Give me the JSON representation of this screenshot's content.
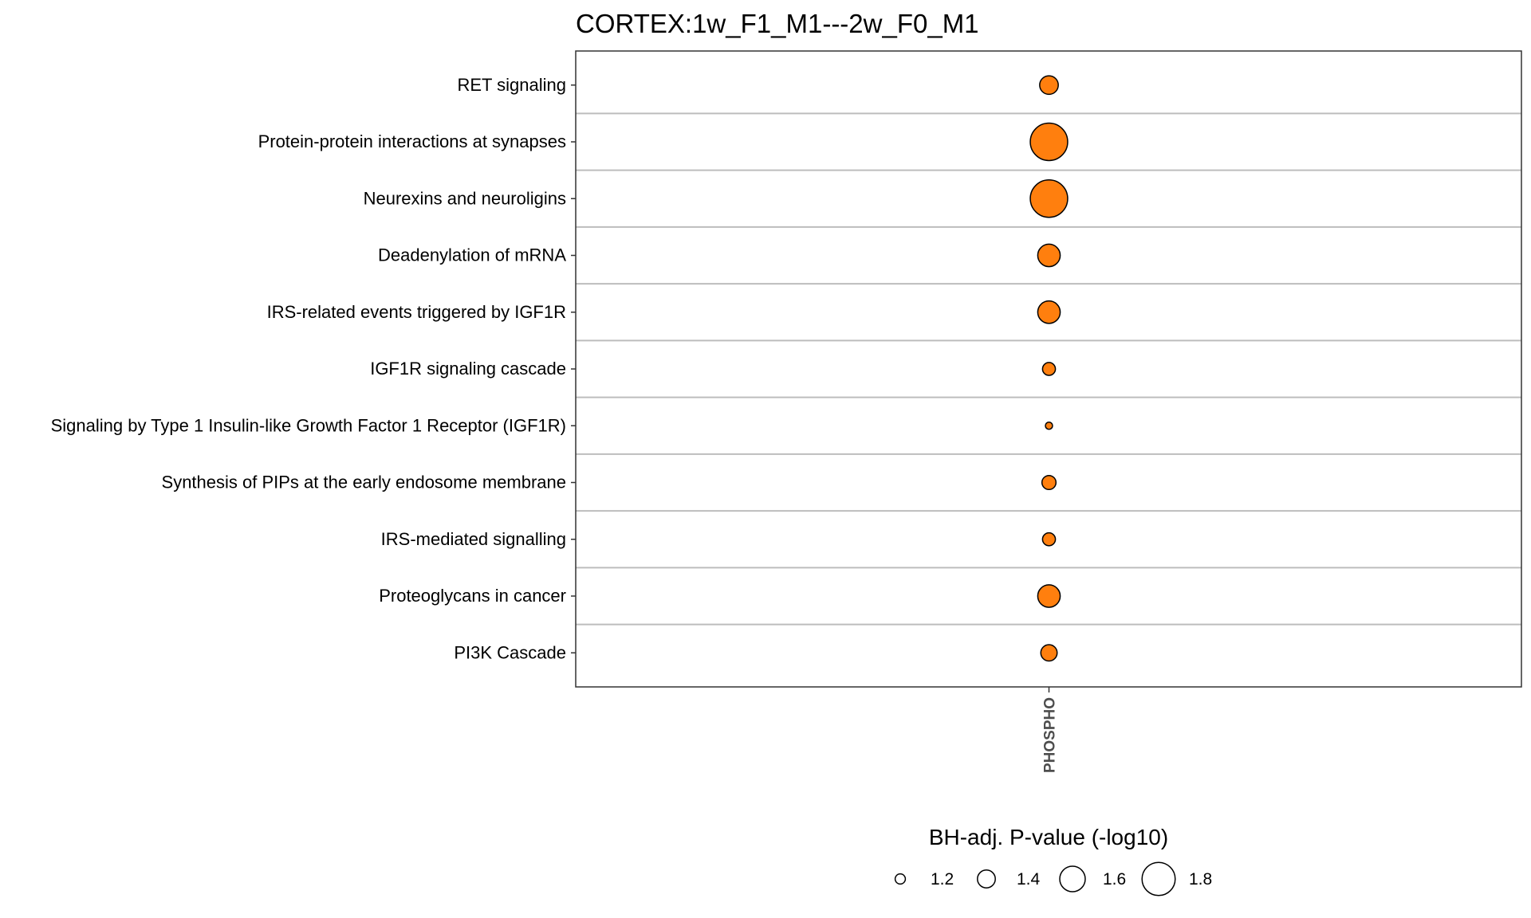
{
  "chart_data": {
    "type": "scatter",
    "title": "CORTEX:1w_F1_M1---2w_F0_M1",
    "x_categories": [
      "PHOSPHO"
    ],
    "y_categories": [
      "RET signaling",
      "Protein-protein interactions at synapses",
      "Neurexins and neuroligins",
      "Deadenylation of mRNA",
      "IRS-related events triggered by IGF1R",
      "IGF1R signaling cascade",
      "Signaling by Type 1 Insulin-like Growth Factor 1 Receptor (IGF1R)",
      "Synthesis of PIPs at the early endosome membrane",
      "IRS-mediated signalling",
      "Proteoglycans in cancer",
      "PI3K Cascade"
    ],
    "points": [
      {
        "x": "PHOSPHO",
        "y": "RET signaling",
        "size": 1.42
      },
      {
        "x": "PHOSPHO",
        "y": "Protein-protein interactions at synapses",
        "size": 1.91
      },
      {
        "x": "PHOSPHO",
        "y": "Neurexins and neuroligins",
        "size": 1.91
      },
      {
        "x": "PHOSPHO",
        "y": "Deadenylation of mRNA",
        "size": 1.52
      },
      {
        "x": "PHOSPHO",
        "y": "IRS-related events triggered by IGF1R",
        "size": 1.52
      },
      {
        "x": "PHOSPHO",
        "y": "IGF1R signaling cascade",
        "size": 1.27
      },
      {
        "x": "PHOSPHO",
        "y": "Signaling by Type 1 Insulin-like Growth Factor 1 Receptor (IGF1R)",
        "size": 1.12
      },
      {
        "x": "PHOSPHO",
        "y": "Synthesis of PIPs at the early endosome membrane",
        "size": 1.3
      },
      {
        "x": "PHOSPHO",
        "y": "IRS-mediated signalling",
        "size": 1.27
      },
      {
        "x": "PHOSPHO",
        "y": "Proteoglycans in cancer",
        "size": 1.52
      },
      {
        "x": "PHOSPHO",
        "y": "PI3K Cascade",
        "size": 1.36
      }
    ],
    "legend": {
      "title": "BH-adj. P-value (-log10)",
      "values": [
        1.2,
        1.4,
        1.6,
        1.8
      ],
      "labels": [
        "1.2",
        "1.4",
        "1.6",
        "1.8"
      ],
      "placement": "bottom"
    },
    "colors": {
      "point_fill": "#ff7f0e",
      "point_stroke": "#000000",
      "grid": "#bdbdbd",
      "panel_border": "#333333"
    },
    "grid": true
  }
}
